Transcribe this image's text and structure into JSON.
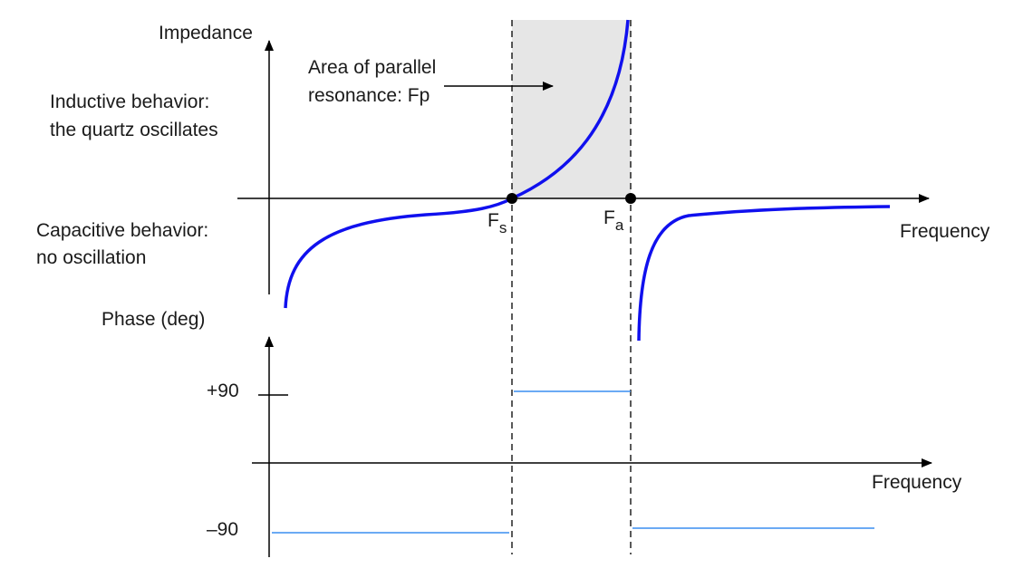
{
  "impedance_chart": {
    "y_label": "Impedance",
    "x_label": "Frequency",
    "area_annotation": [
      "Area of parallel",
      "resonance: Fp"
    ],
    "inductive_note": [
      "Inductive behavior:",
      "the quartz oscillates"
    ],
    "capacitive_note": [
      "Capacitive behavior:",
      "no oscillation"
    ],
    "fs_label": {
      "main": "F",
      "sub": "s"
    },
    "fa_label": {
      "main": "F",
      "sub": "a"
    }
  },
  "phase_chart": {
    "y_label": "Phase (deg)",
    "x_label": "Frequency",
    "tick_plus": "+90",
    "tick_minus": "–90"
  },
  "colors": {
    "curve": "#1010ee",
    "phase": "#3a8ef0",
    "shade": "#e6e6e6"
  }
}
